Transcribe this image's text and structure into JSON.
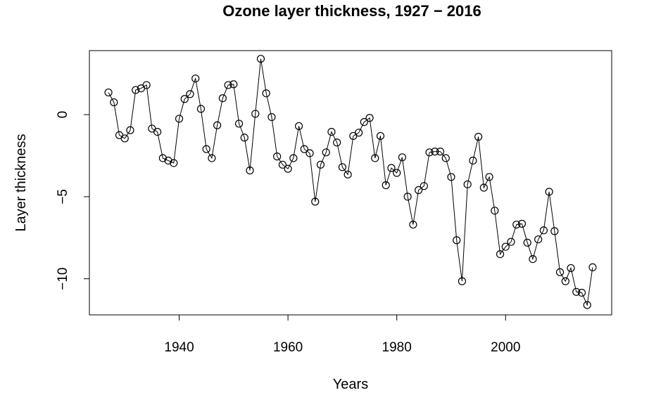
{
  "chart_data": {
    "type": "line",
    "title": "Ozone layer thickness, 1927 − 2016",
    "xlabel": "Years",
    "ylabel": "Layer thickness",
    "xlim": [
      1923.5,
      2019.5
    ],
    "ylim": [
      -12.2,
      3.9
    ],
    "x_ticks": [
      1940,
      1960,
      1980,
      2000
    ],
    "y_ticks": [
      0,
      -5,
      -10
    ],
    "x_tick_labels": [
      "1940",
      "1960",
      "1980",
      "2000"
    ],
    "y_tick_labels": [
      "0",
      "−5",
      "−10"
    ],
    "markers": "open-circle",
    "line_color": "#000000",
    "grid": false,
    "legend": "none",
    "x": [
      1927,
      1928,
      1929,
      1930,
      1931,
      1932,
      1933,
      1934,
      1935,
      1936,
      1937,
      1938,
      1939,
      1940,
      1941,
      1942,
      1943,
      1944,
      1945,
      1946,
      1947,
      1948,
      1949,
      1950,
      1951,
      1952,
      1953,
      1954,
      1955,
      1956,
      1957,
      1958,
      1959,
      1960,
      1961,
      1962,
      1963,
      1964,
      1965,
      1966,
      1967,
      1968,
      1969,
      1970,
      1971,
      1972,
      1973,
      1974,
      1975,
      1976,
      1977,
      1978,
      1979,
      1980,
      1981,
      1982,
      1983,
      1984,
      1985,
      1986,
      1987,
      1988,
      1989,
      1990,
      1991,
      1992,
      1993,
      1994,
      1995,
      1996,
      1997,
      1998,
      1999,
      2000,
      2001,
      2002,
      2003,
      2004,
      2005,
      2006,
      2007,
      2008,
      2009,
      2010,
      2011,
      2012,
      2013,
      2014,
      2015,
      2016
    ],
    "y": [
      1.35,
      0.75,
      -1.25,
      -1.45,
      -0.95,
      1.5,
      1.6,
      1.8,
      -0.85,
      -1.05,
      -2.65,
      -2.8,
      -2.95,
      -0.25,
      0.95,
      1.25,
      2.2,
      0.35,
      -2.1,
      -2.65,
      -0.65,
      1.0,
      1.8,
      1.85,
      -0.55,
      -1.4,
      -3.4,
      0.05,
      3.4,
      1.3,
      -0.15,
      -2.55,
      -3.05,
      -3.3,
      -2.65,
      -0.7,
      -2.1,
      -2.35,
      -5.3,
      -3.05,
      -2.3,
      -1.05,
      -1.7,
      -3.2,
      -3.65,
      -1.3,
      -1.1,
      -0.45,
      -0.2,
      -2.65,
      -1.3,
      -4.3,
      -3.25,
      -3.55,
      -2.6,
      -5.0,
      -6.7,
      -4.6,
      -4.35,
      -2.3,
      -2.25,
      -2.25,
      -2.65,
      -3.8,
      -7.65,
      -10.15,
      -4.25,
      -2.8,
      -1.35,
      -4.45,
      -3.8,
      -5.85,
      -8.5,
      -8.05,
      -7.75,
      -6.7,
      -6.65,
      -7.8,
      -8.8,
      -7.6,
      -7.05,
      -4.7,
      -7.1,
      -9.6,
      -10.15,
      -9.35,
      -10.8,
      -10.85,
      -11.6,
      -9.3
    ]
  }
}
